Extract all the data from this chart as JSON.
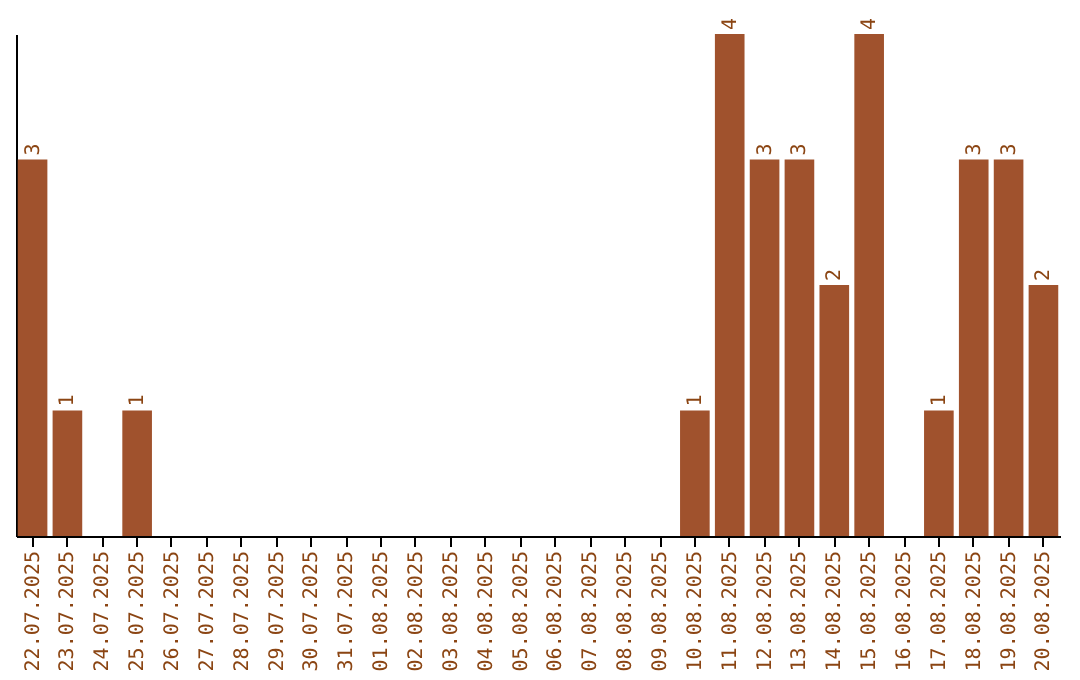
{
  "chart_data": {
    "type": "bar",
    "categories": [
      "22.07.2025",
      "23.07.2025",
      "24.07.2025",
      "25.07.2025",
      "26.07.2025",
      "27.07.2025",
      "28.07.2025",
      "29.07.2025",
      "30.07.2025",
      "31.07.2025",
      "01.08.2025",
      "02.08.2025",
      "03.08.2025",
      "04.08.2025",
      "05.08.2025",
      "06.08.2025",
      "07.08.2025",
      "08.08.2025",
      "09.08.2025",
      "10.08.2025",
      "11.08.2025",
      "12.08.2025",
      "13.08.2025",
      "14.08.2025",
      "15.08.2025",
      "16.08.2025",
      "17.08.2025",
      "18.08.2025",
      "19.08.2025",
      "20.08.2025"
    ],
    "values": [
      3,
      1,
      0,
      1,
      0,
      0,
      0,
      0,
      0,
      0,
      0,
      0,
      0,
      0,
      0,
      0,
      0,
      0,
      0,
      1,
      4,
      3,
      3,
      2,
      4,
      0,
      1,
      3,
      3,
      2
    ],
    "value_labels": [
      "3",
      "1",
      null,
      "1",
      null,
      null,
      null,
      null,
      null,
      null,
      null,
      null,
      null,
      null,
      null,
      null,
      null,
      null,
      null,
      "1",
      "4",
      "3",
      "3",
      "2",
      "4",
      null,
      "1",
      "3",
      "3",
      "2"
    ],
    "color": "#a0522d",
    "ylim": [
      0,
      4
    ],
    "tick_labels": "x",
    "grid": false
  }
}
